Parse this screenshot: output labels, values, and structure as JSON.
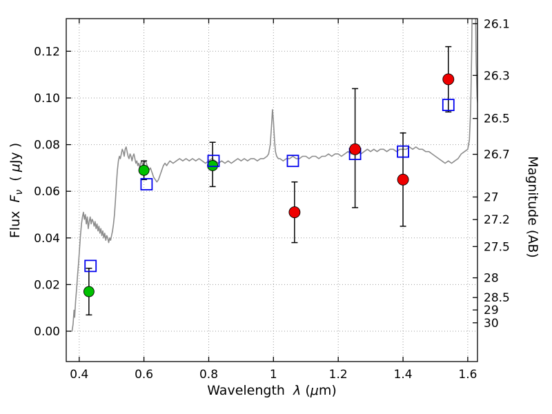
{
  "figure": {
    "background": "#ffffff",
    "frame_color": "#000000",
    "grid_color": "#999999",
    "grid_style": "dotted"
  },
  "chart_data": {
    "type": "scatter",
    "title": "",
    "xlabel": "Wavelength λ (μm)",
    "ylabel": "Flux Fν ( μJy )",
    "ylabel_right": "Magnitude (AB)",
    "xlim": [
      0.36,
      1.63
    ],
    "ylim": [
      -0.013,
      0.134
    ],
    "grid": true,
    "legend": false,
    "mag_zero_point": 23.9,
    "x_ticks": [
      0.4,
      0.6,
      0.8,
      1.0,
      1.2,
      1.4,
      1.6
    ],
    "x_tick_labels": [
      "0.4",
      "0.6",
      "0.8",
      "1",
      "1.2",
      "1.4",
      "1.6"
    ],
    "y_ticks_left": [
      0.0,
      0.02,
      0.04,
      0.06,
      0.08,
      0.1,
      0.12
    ],
    "y_tick_labels_left": [
      "0.00",
      "0.02",
      "0.04",
      "0.06",
      "0.08",
      "0.10",
      "0.12"
    ],
    "y_ticks_right_mag": [
      26.1,
      26.3,
      26.5,
      26.7,
      27.0,
      27.2,
      27.5,
      28.0,
      28.5,
      29.0,
      30.0
    ],
    "y_tick_labels_right": [
      "26.1",
      "26.3",
      "26.5",
      "26.7",
      "27",
      "27.2",
      "27.5",
      "28",
      "28.5",
      "29",
      "30"
    ],
    "labels": {
      "xlabel_parts": {
        "p1": "Wavelength  ",
        "p2": "λ",
        "p3": " (",
        "p4": "μ",
        "p5": "m)"
      },
      "ylabel_parts": {
        "p1": "Flux  ",
        "p2": "F",
        "p3": "ν",
        "p4": "  ( ",
        "p5": "μ",
        "p6": "Jy )"
      },
      "ylabel_right": "Magnitude (AB)"
    },
    "series": [
      {
        "name": "model-spectrum",
        "type": "line",
        "color": "#8c8c8c",
        "points": [
          [
            0.372,
            0
          ],
          [
            0.378,
            0
          ],
          [
            0.381,
            0.003
          ],
          [
            0.384,
            0.009
          ],
          [
            0.386,
            0.006
          ],
          [
            0.389,
            0.013
          ],
          [
            0.392,
            0.018
          ],
          [
            0.395,
            0.024
          ],
          [
            0.398,
            0.029
          ],
          [
            0.401,
            0.035
          ],
          [
            0.404,
            0.041
          ],
          [
            0.407,
            0.046
          ],
          [
            0.41,
            0.049
          ],
          [
            0.413,
            0.051
          ],
          [
            0.416,
            0.048
          ],
          [
            0.419,
            0.05
          ],
          [
            0.422,
            0.046
          ],
          [
            0.425,
            0.049
          ],
          [
            0.428,
            0.044
          ],
          [
            0.431,
            0.047
          ],
          [
            0.434,
            0.049
          ],
          [
            0.437,
            0.046
          ],
          [
            0.44,
            0.048
          ],
          [
            0.443,
            0.047
          ],
          [
            0.446,
            0.045
          ],
          [
            0.449,
            0.047
          ],
          [
            0.452,
            0.044
          ],
          [
            0.455,
            0.046
          ],
          [
            0.458,
            0.043
          ],
          [
            0.461,
            0.045
          ],
          [
            0.464,
            0.042
          ],
          [
            0.467,
            0.044
          ],
          [
            0.47,
            0.041
          ],
          [
            0.473,
            0.043
          ],
          [
            0.476,
            0.04
          ],
          [
            0.479,
            0.042
          ],
          [
            0.482,
            0.039
          ],
          [
            0.485,
            0.041
          ],
          [
            0.488,
            0.04
          ],
          [
            0.491,
            0.038
          ],
          [
            0.494,
            0.04
          ],
          [
            0.497,
            0.039
          ],
          [
            0.5,
            0.041
          ],
          [
            0.503,
            0.043
          ],
          [
            0.506,
            0.046
          ],
          [
            0.509,
            0.05
          ],
          [
            0.512,
            0.056
          ],
          [
            0.515,
            0.063
          ],
          [
            0.518,
            0.069
          ],
          [
            0.521,
            0.073
          ],
          [
            0.524,
            0.075
          ],
          [
            0.527,
            0.074
          ],
          [
            0.53,
            0.076
          ],
          [
            0.533,
            0.078
          ],
          [
            0.536,
            0.077
          ],
          [
            0.539,
            0.075
          ],
          [
            0.542,
            0.078
          ],
          [
            0.545,
            0.079
          ],
          [
            0.548,
            0.077
          ],
          [
            0.551,
            0.075
          ],
          [
            0.554,
            0.074
          ],
          [
            0.557,
            0.076
          ],
          [
            0.56,
            0.075
          ],
          [
            0.563,
            0.073
          ],
          [
            0.566,
            0.075
          ],
          [
            0.569,
            0.076
          ],
          [
            0.572,
            0.074
          ],
          [
            0.575,
            0.072
          ],
          [
            0.578,
            0.073
          ],
          [
            0.581,
            0.071
          ],
          [
            0.584,
            0.072
          ],
          [
            0.587,
            0.07
          ],
          [
            0.59,
            0.072
          ],
          [
            0.593,
            0.073
          ],
          [
            0.596,
            0.071
          ],
          [
            0.6,
            0.072
          ],
          [
            0.605,
            0.073
          ],
          [
            0.61,
            0.071
          ],
          [
            0.615,
            0.069
          ],
          [
            0.62,
            0.07
          ],
          [
            0.625,
            0.068
          ],
          [
            0.63,
            0.066
          ],
          [
            0.635,
            0.065
          ],
          [
            0.64,
            0.064
          ],
          [
            0.645,
            0.065
          ],
          [
            0.65,
            0.067
          ],
          [
            0.655,
            0.069
          ],
          [
            0.66,
            0.071
          ],
          [
            0.665,
            0.072
          ],
          [
            0.67,
            0.071
          ],
          [
            0.675,
            0.072
          ],
          [
            0.68,
            0.073
          ],
          [
            0.69,
            0.072
          ],
          [
            0.7,
            0.073
          ],
          [
            0.71,
            0.074
          ],
          [
            0.72,
            0.073
          ],
          [
            0.73,
            0.074
          ],
          [
            0.74,
            0.073
          ],
          [
            0.75,
            0.074
          ],
          [
            0.76,
            0.073
          ],
          [
            0.77,
            0.074
          ],
          [
            0.78,
            0.073
          ],
          [
            0.79,
            0.072
          ],
          [
            0.8,
            0.073
          ],
          [
            0.81,
            0.074
          ],
          [
            0.82,
            0.073
          ],
          [
            0.83,
            0.072
          ],
          [
            0.84,
            0.073
          ],
          [
            0.85,
            0.072
          ],
          [
            0.86,
            0.073
          ],
          [
            0.87,
            0.072
          ],
          [
            0.88,
            0.073
          ],
          [
            0.89,
            0.074
          ],
          [
            0.9,
            0.073
          ],
          [
            0.91,
            0.074
          ],
          [
            0.92,
            0.073
          ],
          [
            0.93,
            0.074
          ],
          [
            0.94,
            0.074
          ],
          [
            0.95,
            0.073
          ],
          [
            0.96,
            0.074
          ],
          [
            0.97,
            0.074
          ],
          [
            0.98,
            0.075
          ],
          [
            0.985,
            0.076
          ],
          [
            0.99,
            0.08
          ],
          [
            0.994,
            0.088
          ],
          [
            0.997,
            0.095
          ],
          [
            1.0,
            0.09
          ],
          [
            1.003,
            0.082
          ],
          [
            1.006,
            0.077
          ],
          [
            1.01,
            0.075
          ],
          [
            1.015,
            0.074
          ],
          [
            1.02,
            0.074
          ],
          [
            1.03,
            0.073
          ],
          [
            1.04,
            0.074
          ],
          [
            1.05,
            0.074
          ],
          [
            1.06,
            0.075
          ],
          [
            1.07,
            0.074
          ],
          [
            1.08,
            0.074
          ],
          [
            1.09,
            0.075
          ],
          [
            1.1,
            0.075
          ],
          [
            1.11,
            0.074
          ],
          [
            1.12,
            0.075
          ],
          [
            1.13,
            0.075
          ],
          [
            1.14,
            0.074
          ],
          [
            1.15,
            0.075
          ],
          [
            1.16,
            0.075
          ],
          [
            1.17,
            0.076
          ],
          [
            1.18,
            0.075
          ],
          [
            1.19,
            0.076
          ],
          [
            1.2,
            0.076
          ],
          [
            1.21,
            0.075
          ],
          [
            1.22,
            0.076
          ],
          [
            1.23,
            0.077
          ],
          [
            1.24,
            0.076
          ],
          [
            1.25,
            0.077
          ],
          [
            1.26,
            0.077
          ],
          [
            1.27,
            0.076
          ],
          [
            1.28,
            0.077
          ],
          [
            1.29,
            0.078
          ],
          [
            1.3,
            0.077
          ],
          [
            1.31,
            0.078
          ],
          [
            1.32,
            0.077
          ],
          [
            1.33,
            0.078
          ],
          [
            1.34,
            0.078
          ],
          [
            1.35,
            0.077
          ],
          [
            1.36,
            0.078
          ],
          [
            1.37,
            0.078
          ],
          [
            1.38,
            0.077
          ],
          [
            1.39,
            0.078
          ],
          [
            1.4,
            0.078
          ],
          [
            1.41,
            0.078
          ],
          [
            1.42,
            0.079
          ],
          [
            1.43,
            0.078
          ],
          [
            1.44,
            0.079
          ],
          [
            1.45,
            0.078
          ],
          [
            1.46,
            0.078
          ],
          [
            1.47,
            0.077
          ],
          [
            1.48,
            0.077
          ],
          [
            1.49,
            0.076
          ],
          [
            1.5,
            0.075
          ],
          [
            1.51,
            0.074
          ],
          [
            1.52,
            0.073
          ],
          [
            1.53,
            0.072
          ],
          [
            1.54,
            0.073
          ],
          [
            1.55,
            0.072
          ],
          [
            1.56,
            0.073
          ],
          [
            1.57,
            0.074
          ],
          [
            1.58,
            0.076
          ],
          [
            1.59,
            0.077
          ],
          [
            1.6,
            0.078
          ],
          [
            1.605,
            0.082
          ],
          [
            1.609,
            0.095
          ],
          [
            1.612,
            0.12
          ],
          [
            1.616,
            0.17
          ],
          [
            1.62,
            0.21
          ],
          [
            1.623,
            0.15
          ],
          [
            1.626,
            0.115
          ],
          [
            1.629,
            0.1
          ],
          [
            1.632,
            0.096
          ]
        ]
      },
      {
        "name": "observed-photometry-green",
        "type": "scatter",
        "marker": "circle",
        "color": "#00c000",
        "edge": "#000000",
        "points": [
          {
            "x": 0.43,
            "y": 0.017,
            "yerr_lo": 0.01,
            "yerr_hi": 0.01
          },
          {
            "x": 0.6,
            "y": 0.069,
            "yerr_lo": 0.004,
            "yerr_hi": 0.004
          },
          {
            "x": 0.812,
            "y": 0.071,
            "yerr_lo": 0.009,
            "yerr_hi": 0.01
          }
        ]
      },
      {
        "name": "model-photometry-blue",
        "type": "scatter",
        "marker": "square-open",
        "color": "#0000ee",
        "points": [
          {
            "x": 0.435,
            "y": 0.028
          },
          {
            "x": 0.608,
            "y": 0.063
          },
          {
            "x": 0.815,
            "y": 0.073
          },
          {
            "x": 1.06,
            "y": 0.073
          },
          {
            "x": 1.252,
            "y": 0.076
          },
          {
            "x": 1.4,
            "y": 0.077
          },
          {
            "x": 1.54,
            "y": 0.097
          }
        ]
      },
      {
        "name": "observed-photometry-red",
        "type": "scatter",
        "marker": "circle",
        "color": "#ee0000",
        "edge": "#000000",
        "points": [
          {
            "x": 1.065,
            "y": 0.051,
            "yerr_lo": 0.013,
            "yerr_hi": 0.013
          },
          {
            "x": 1.252,
            "y": 0.078,
            "yerr_lo": 0.025,
            "yerr_hi": 0.026
          },
          {
            "x": 1.4,
            "y": 0.065,
            "yerr_lo": 0.02,
            "yerr_hi": 0.02
          },
          {
            "x": 1.54,
            "y": 0.108,
            "yerr_lo": 0.014,
            "yerr_hi": 0.014
          }
        ]
      }
    ]
  }
}
